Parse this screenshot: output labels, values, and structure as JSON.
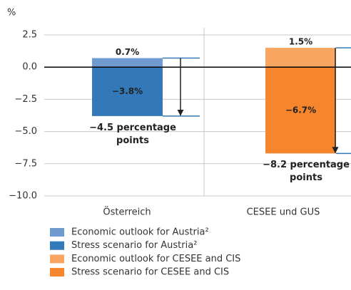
{
  "chart_data": {
    "type": "bar",
    "y_label": "%",
    "categories": [
      "Österreich",
      "CESEE und GUS"
    ],
    "series": [
      {
        "name": "Economic outlook for Austria²",
        "color": "#6f9bd1",
        "values": [
          0.7,
          null
        ],
        "value_labels": [
          "0.7%",
          null
        ]
      },
      {
        "name": "Stress scenario for Austria²",
        "color": "#3378b8",
        "values": [
          -3.8,
          null
        ],
        "value_labels": [
          "−3.8%",
          null
        ]
      },
      {
        "name": "Economic outlook for CESEE and CIS",
        "color": "#f9a663",
        "values": [
          null,
          1.5
        ],
        "value_labels": [
          null,
          "1.5%"
        ]
      },
      {
        "name": "Stress scenario for CESEE and CIS",
        "color": "#f5862e",
        "values": [
          null,
          -6.7
        ],
        "value_labels": [
          null,
          "−6.7%"
        ]
      }
    ],
    "annotations": [
      {
        "value": -4.5,
        "label": "−4.5 percentage points"
      },
      {
        "value": -8.2,
        "label": "−8.2 percentage points"
      }
    ],
    "ylim": [
      -10,
      2.5
    ],
    "yticks": [
      2.5,
      {
        "value": 0,
        "label": "0.0"
      },
      {
        "value": -2.5,
        "label": "−2.5"
      },
      {
        "value": -5,
        "label": "−5.0"
      },
      {
        "value": -7.5,
        "label": "−7.5"
      },
      {
        "value": -10,
        "label": "−10.0"
      }
    ],
    "grid": true
  }
}
